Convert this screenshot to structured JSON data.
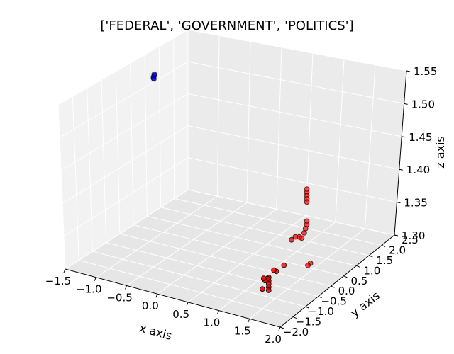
{
  "chart_data": {
    "type": "scatter",
    "title": "['FEDERAL', 'GOVERNMENT', 'POLITICS']",
    "xlabel": "x axis",
    "ylabel": "y axis",
    "zlabel": "z axis",
    "grid": true,
    "xticks": [
      "−1.5",
      "−1.0",
      "−0.5",
      "0.0",
      "0.5",
      "1.0",
      "1.5",
      "2.0"
    ],
    "yticks": [
      "−2.0",
      "−1.5",
      "−1.0",
      "−0.5",
      "0.0",
      "0.5",
      "1.0",
      "1.5",
      "2.0",
      "2.5"
    ],
    "zticks": [
      "1.30",
      "1.35",
      "1.40",
      "1.45",
      "1.50",
      "1.55"
    ],
    "series": [
      {
        "color": "#0000ff",
        "points": [
          {
            "x": -1.3,
            "y": 1.0,
            "z": 1.51
          },
          {
            "x": -1.29,
            "y": 1.01,
            "z": 1.512
          },
          {
            "x": -1.3,
            "y": 0.99,
            "z": 1.508
          },
          {
            "x": -1.29,
            "y": 1.0,
            "z": 1.514
          },
          {
            "x": -1.3,
            "y": 1.01,
            "z": 1.506
          }
        ]
      },
      {
        "color": "#ff0000",
        "points": [
          {
            "x": 1.4,
            "y": 0.5,
            "z": 1.42
          },
          {
            "x": 1.4,
            "y": 0.5,
            "z": 1.415
          },
          {
            "x": 1.4,
            "y": 0.5,
            "z": 1.41
          },
          {
            "x": 1.4,
            "y": 0.5,
            "z": 1.405
          },
          {
            "x": 1.4,
            "y": 0.5,
            "z": 1.4
          },
          {
            "x": 1.4,
            "y": 0.5,
            "z": 1.37
          },
          {
            "x": 1.4,
            "y": 0.5,
            "z": 1.365
          },
          {
            "x": 1.4,
            "y": 0.45,
            "z": 1.36
          },
          {
            "x": 1.4,
            "y": 0.4,
            "z": 1.355
          },
          {
            "x": 1.4,
            "y": 0.3,
            "z": 1.35
          },
          {
            "x": 1.4,
            "y": 0.2,
            "z": 1.355
          },
          {
            "x": 1.4,
            "y": 0.05,
            "z": 1.36
          },
          {
            "x": 1.4,
            "y": -0.1,
            "z": 1.36
          },
          {
            "x": 1.4,
            "y": -0.4,
            "z": 1.33
          },
          {
            "x": 1.4,
            "y": -0.7,
            "z": 1.33
          },
          {
            "x": 1.4,
            "y": -0.8,
            "z": 1.335
          },
          {
            "x": 1.4,
            "y": -1.0,
            "z": 1.33
          },
          {
            "x": 1.4,
            "y": -1.0,
            "z": 1.325
          },
          {
            "x": 1.4,
            "y": -1.0,
            "z": 1.32
          },
          {
            "x": 1.4,
            "y": -1.0,
            "z": 1.315
          },
          {
            "x": 1.4,
            "y": -1.0,
            "z": 1.31
          },
          {
            "x": 1.4,
            "y": -1.05,
            "z": 1.33
          },
          {
            "x": 1.4,
            "y": -1.15,
            "z": 1.33
          },
          {
            "x": 1.4,
            "y": -1.2,
            "z": 1.335
          },
          {
            "x": 1.4,
            "y": -1.25,
            "z": 1.32
          },
          {
            "x": 1.5,
            "y": 0.4,
            "z": 1.31
          },
          {
            "x": 1.5,
            "y": 0.3,
            "z": 1.31
          }
        ]
      }
    ]
  }
}
